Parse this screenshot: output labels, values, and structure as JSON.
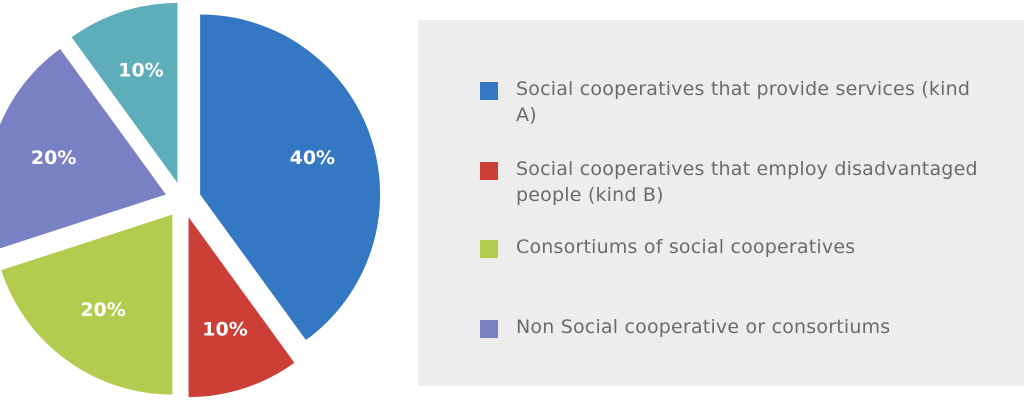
{
  "chart_data": {
    "type": "pie",
    "title": "",
    "slices": [
      {
        "label": "Social cooperatives that provide services (kind A)",
        "value": 40,
        "value_label": "40%",
        "color": "#3477c2"
      },
      {
        "label": "Social cooperatives that employ disadvantaged people (kind B)",
        "value": 10,
        "value_label": "10%",
        "color": "#cc3f36"
      },
      {
        "label": "Consortiums of social cooperatives",
        "value": 20,
        "value_label": "20%",
        "color": "#b3cc4f"
      },
      {
        "label": "Non Social cooperative or consortiums",
        "value": 20,
        "value_label": "20%",
        "color": "#7a80c4"
      },
      {
        "label": "",
        "value": 10,
        "value_label": "10%",
        "color": "#5eadbb"
      }
    ],
    "legend_position": "right",
    "exploded": true
  },
  "legend": {
    "items": [
      {
        "label": "Social cooperatives that provide services (kind A)",
        "color": "#3477c2"
      },
      {
        "label": "Social cooperatives that employ disadvantaged people (kind B)",
        "color": "#cc3f36"
      },
      {
        "label": "Consortiums of social cooperatives",
        "color": "#b3cc4f"
      },
      {
        "label": "Non Social cooperative or consortiums",
        "color": "#7a80c4"
      }
    ]
  }
}
